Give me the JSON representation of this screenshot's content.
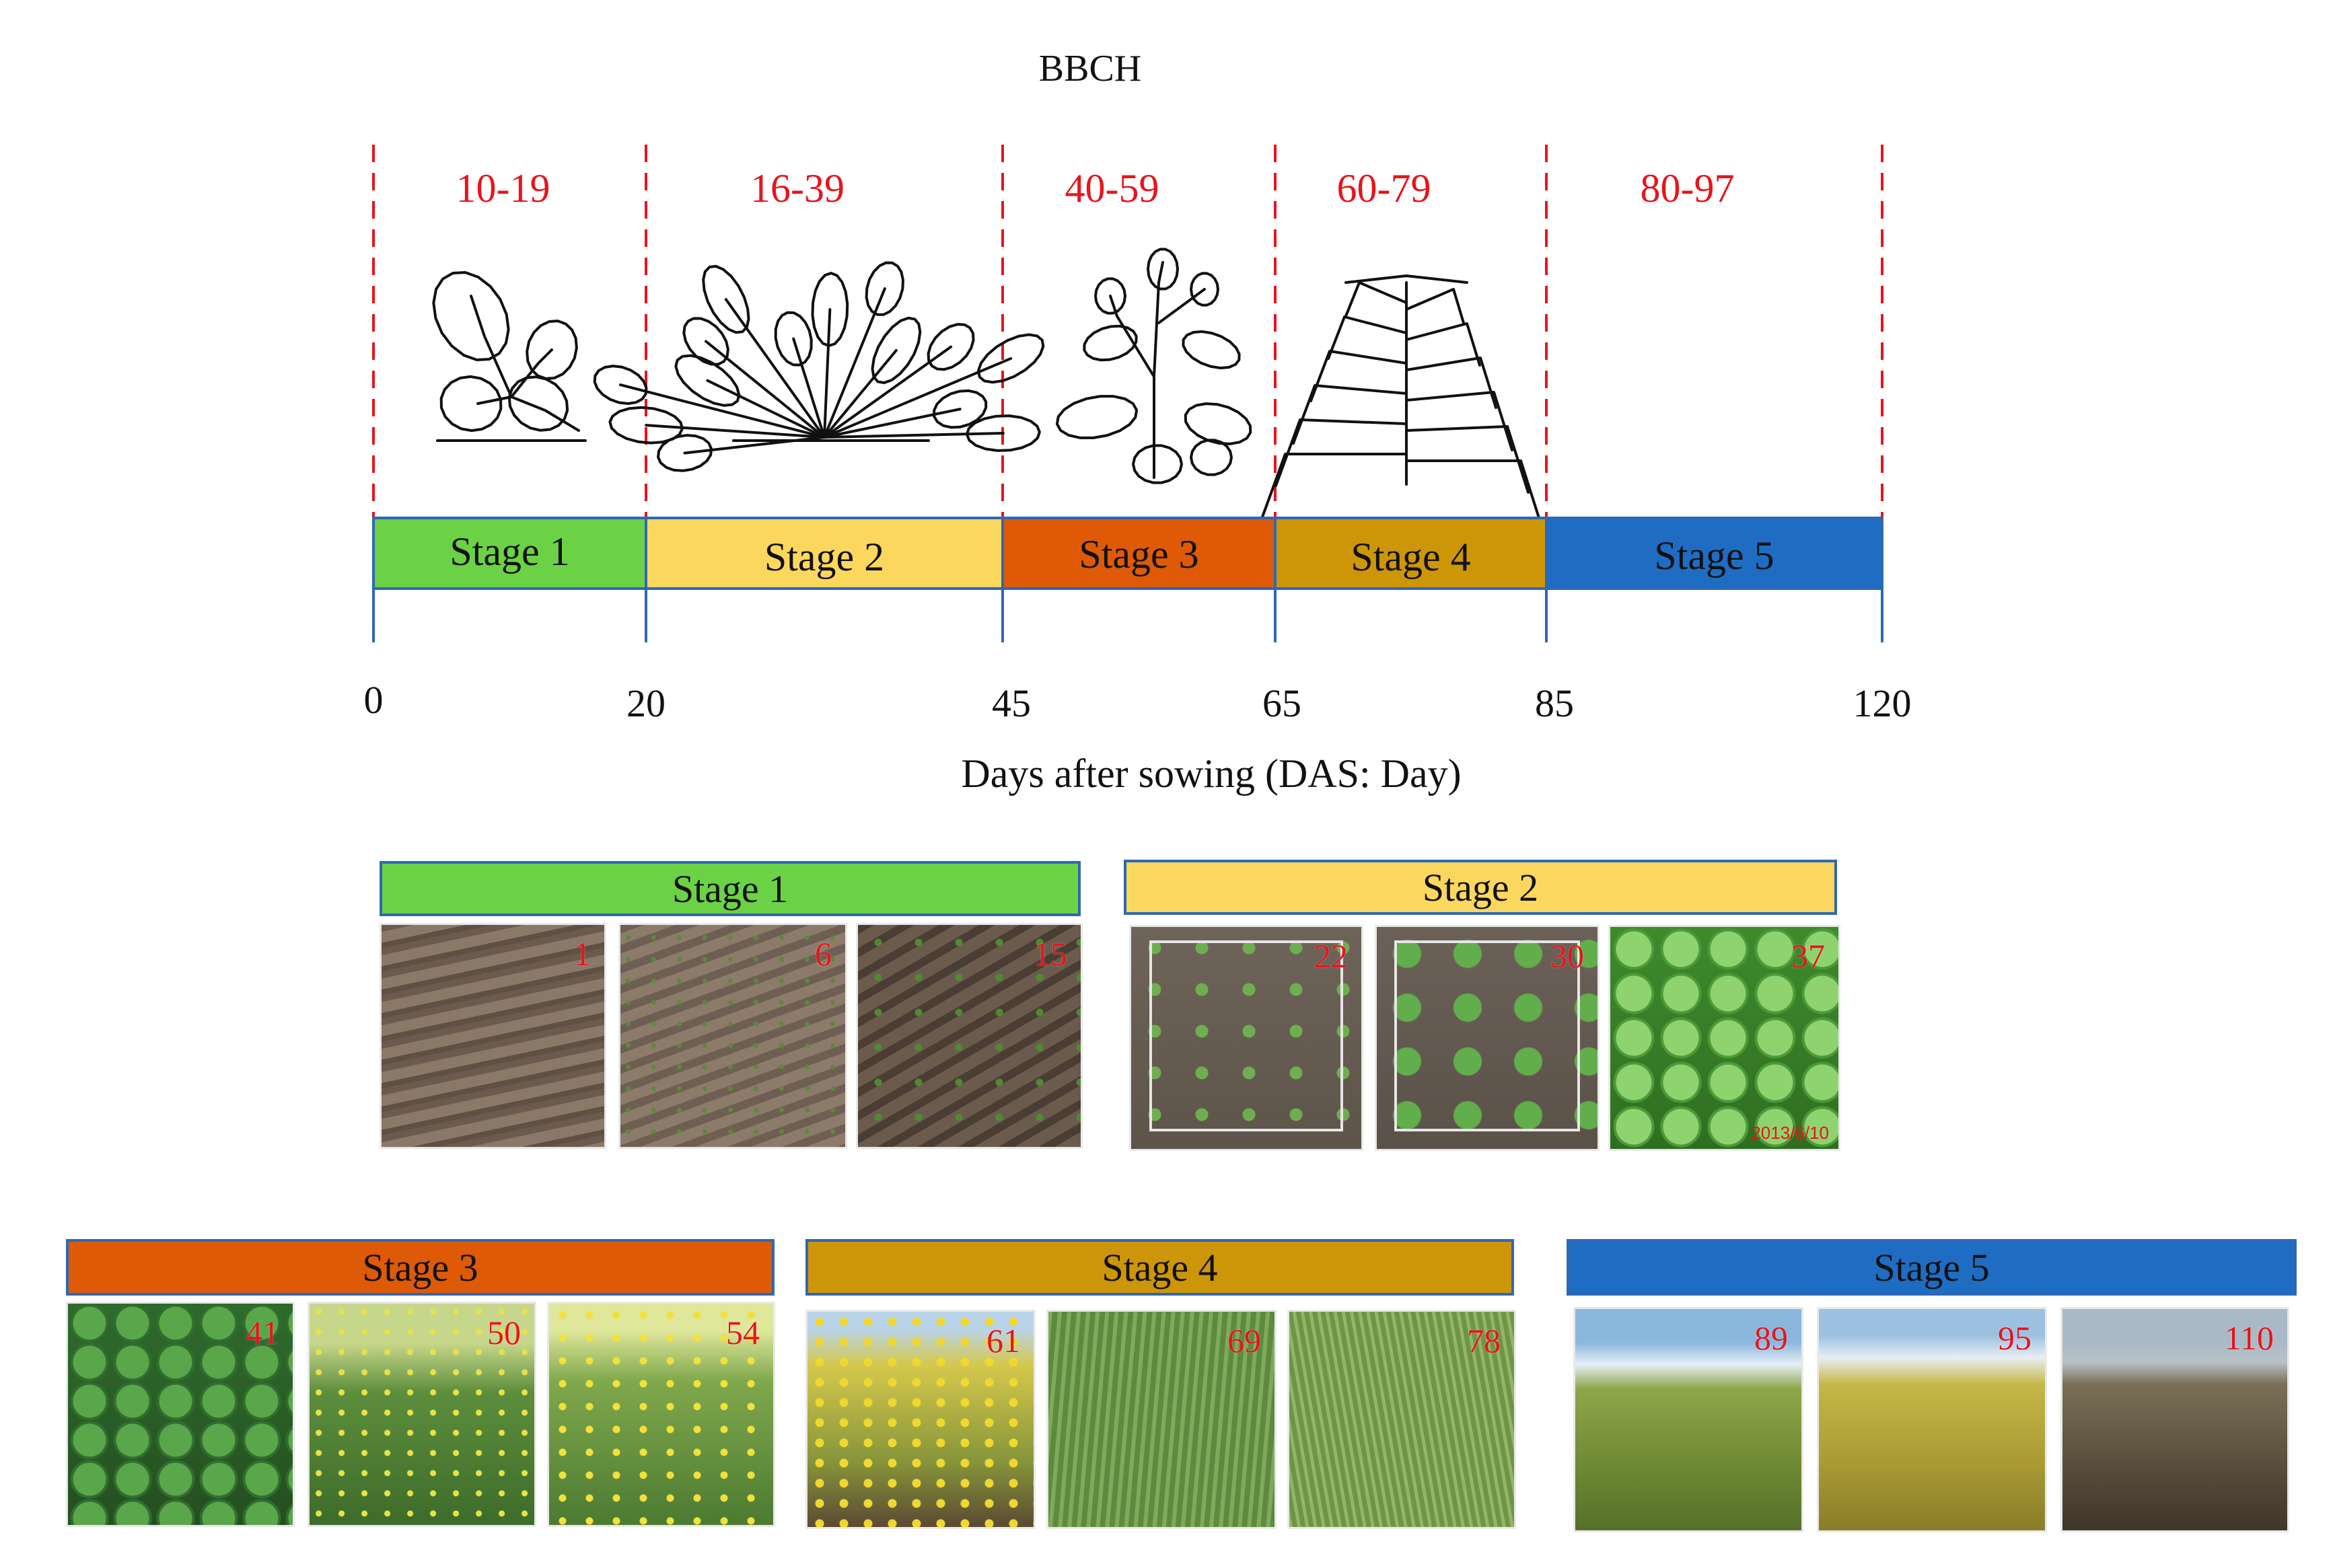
{
  "title": "BBCH",
  "axis_label": "Days after sowing (DAS: Day)",
  "colors": {
    "stage1": "#6cd245",
    "stage2": "#fcd75e",
    "stage3": "#de5a06",
    "stage4": "#cd9608",
    "stage5": "#1f6dc3",
    "bbch_text": "#e8141c",
    "dashed_line": "#e8141c",
    "axis_line": "#2e68b5"
  },
  "timeline": {
    "ticks": [
      "0",
      "20",
      "45",
      "65",
      "85",
      "120"
    ],
    "stages": [
      {
        "label": "Stage 1",
        "bbch": "10-19",
        "start": 0,
        "end": 20,
        "illustration": "seedling-icon"
      },
      {
        "label": "Stage 2",
        "bbch": "16-39",
        "start": 20,
        "end": 45,
        "illustration": "rosette-plant-icon"
      },
      {
        "label": "Stage 3",
        "bbch": "40-59",
        "start": 45,
        "end": 65,
        "illustration": "flowering-plant-icon"
      },
      {
        "label": "Stage 4",
        "bbch": "60-79",
        "start": 65,
        "end": 85,
        "illustration": "podding-plant-icon"
      },
      {
        "label": "Stage 5",
        "bbch": "80-97",
        "start": 85,
        "end": 120,
        "illustration": ""
      }
    ]
  },
  "photo_panels": [
    {
      "label": "Stage 1",
      "photos": [
        {
          "day": "1",
          "scene": "bare-soil"
        },
        {
          "day": "6",
          "scene": "soil-sprouts"
        },
        {
          "day": "15",
          "scene": "soil-seedlings"
        }
      ]
    },
    {
      "label": "Stage 2",
      "photos": [
        {
          "day": "22",
          "scene": "quadrat-seedlings"
        },
        {
          "day": "30",
          "scene": "quadrat-rosettes"
        },
        {
          "day": "37",
          "scene": "dense-leaves",
          "stamp": "2013/6/10"
        }
      ]
    },
    {
      "label": "Stage 3",
      "photos": [
        {
          "day": "41",
          "scene": "leafy-canopy"
        },
        {
          "day": "50",
          "scene": "early-flowering"
        },
        {
          "day": "54",
          "scene": "flowering-field"
        }
      ]
    },
    {
      "label": "Stage 4",
      "photos": [
        {
          "day": "61",
          "scene": "yellow-flowering"
        },
        {
          "day": "69",
          "scene": "green-podding"
        },
        {
          "day": "78",
          "scene": "pod-field"
        }
      ]
    },
    {
      "label": "Stage 5",
      "photos": [
        {
          "day": "89",
          "scene": "ripening-field"
        },
        {
          "day": "95",
          "scene": "mature-field"
        },
        {
          "day": "110",
          "scene": "harvested-field"
        }
      ]
    }
  ]
}
